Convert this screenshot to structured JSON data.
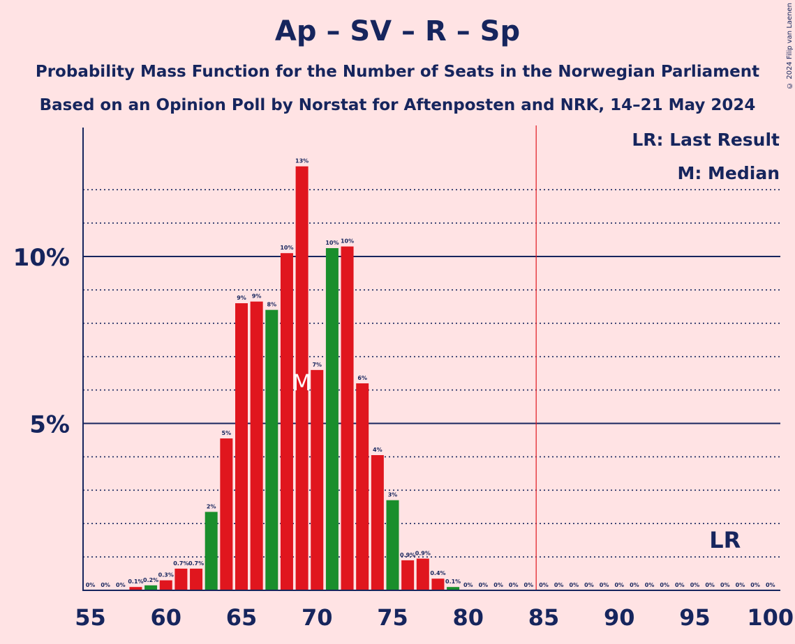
{
  "title": "Ap – SV – R – Sp",
  "subtitle": "Probability Mass Function for the Number of Seats in the Norwegian Parliament",
  "subtitle2": "Based on an Opinion Poll by Norstat for Aftenposten and NRK, 14–21 May 2024",
  "copyright": "© 2024 Filip van Laenen",
  "legend": {
    "lr": "LR: Last Result",
    "median": "M: Median"
  },
  "markers": {
    "median_label": "M",
    "lr_label": "LR"
  },
  "colors": {
    "background": "#FFE3E4",
    "red": "#E0161E",
    "green": "#1A8E2C",
    "text": "#16255D",
    "majority_line": "#E0161E"
  },
  "chart_data": {
    "type": "bar",
    "xlabel": "",
    "ylabel": "",
    "xlim": [
      55,
      100
    ],
    "ylim": [
      0,
      13.8
    ],
    "x_ticks": [
      55,
      60,
      65,
      70,
      75,
      80,
      85,
      90,
      95,
      100
    ],
    "y_ticks": [
      {
        "value": 5,
        "label": "5%"
      },
      {
        "value": 10,
        "label": "10%"
      }
    ],
    "grid_minor": [
      1,
      2,
      3,
      4,
      6,
      7,
      8,
      9,
      11,
      12
    ],
    "majority_line": 84.5,
    "median": 69,
    "last_result": 97,
    "seats": [
      55,
      56,
      57,
      58,
      59,
      60,
      61,
      62,
      63,
      64,
      65,
      66,
      67,
      68,
      69,
      70,
      71,
      72,
      73,
      74,
      75,
      76,
      77,
      78,
      79,
      80,
      81,
      82,
      83,
      84,
      85,
      86,
      87,
      88,
      89,
      90,
      91,
      92,
      93,
      94,
      95,
      96,
      97,
      98,
      99,
      100
    ],
    "values": [
      0,
      0,
      0,
      0.1,
      0.15,
      0.3,
      0.65,
      0.65,
      2.35,
      4.55,
      8.6,
      8.65,
      8.4,
      10.1,
      12.7,
      6.6,
      10.25,
      10.3,
      6.2,
      4.05,
      2.7,
      0.9,
      0.95,
      0.35,
      0.1,
      0,
      0,
      0,
      0,
      0,
      0,
      0,
      0,
      0,
      0,
      0,
      0,
      0,
      0,
      0,
      0,
      0,
      0,
      0,
      0,
      0
    ],
    "labels": [
      "0%",
      "0%",
      "0%",
      "0.1%",
      "0.2%",
      "0.3%",
      "0.7%",
      "0.7%",
      "2%",
      "5%",
      "9%",
      "9%",
      "8%",
      "10%",
      "13%",
      "7%",
      "10%",
      "10%",
      "6%",
      "4%",
      "3%",
      "0.9%",
      "0.9%",
      "0.4%",
      "0.1%",
      "0%",
      "0%",
      "0%",
      "0%",
      "0%",
      "0%",
      "0%",
      "0%",
      "0%",
      "0%",
      "0%",
      "0%",
      "0%",
      "0%",
      "0%",
      "0%",
      "0%",
      "0%",
      "0%",
      "0%",
      "0%"
    ],
    "colors": [
      "red",
      "red",
      "red",
      "red",
      "green",
      "red",
      "red",
      "red",
      "green",
      "red",
      "red",
      "red",
      "green",
      "red",
      "red",
      "red",
      "green",
      "red",
      "red",
      "red",
      "green",
      "red",
      "red",
      "red",
      "green",
      "red",
      "red",
      "red",
      "red",
      "red",
      "red",
      "red",
      "red",
      "red",
      "red",
      "red",
      "red",
      "red",
      "red",
      "red",
      "red",
      "red",
      "red",
      "red",
      "red",
      "red"
    ]
  }
}
